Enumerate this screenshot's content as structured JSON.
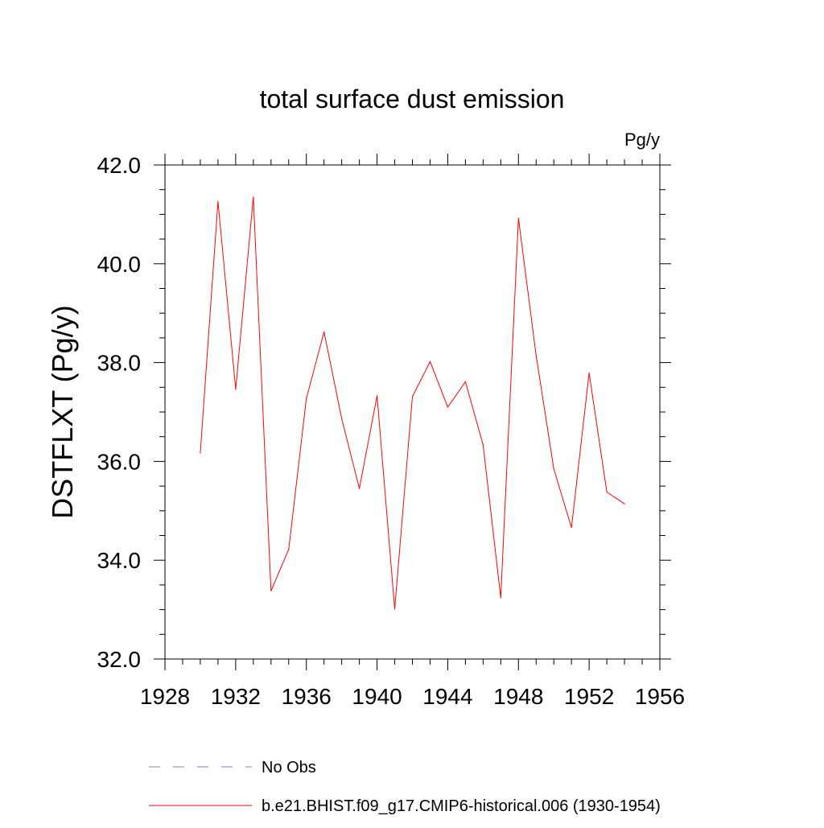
{
  "chart_data": {
    "type": "line",
    "title": "total surface dust emission",
    "units_label": "Pg/y",
    "ylabel": "DSTFLXT  (Pg/y)",
    "xlabel": "",
    "xlim": [
      1928,
      1956
    ],
    "ylim": [
      32.0,
      42.0
    ],
    "x_ticks": [
      "1928",
      "1932",
      "1936",
      "1940",
      "1944",
      "1948",
      "1952",
      "1956"
    ],
    "y_ticks": [
      "32.0",
      "34.0",
      "36.0",
      "38.0",
      "40.0",
      "42.0"
    ],
    "grid": false,
    "legend_position": "bottom",
    "series": [
      {
        "name": "b.e21.BHIST.f09_g17.CMIP6-historical.006 (1930-1954)",
        "color": "#ff0000",
        "style": "solid",
        "x": [
          1930,
          1931,
          1932,
          1933,
          1934,
          1935,
          1936,
          1937,
          1938,
          1939,
          1940,
          1941,
          1942,
          1943,
          1944,
          1945,
          1946,
          1947,
          1948,
          1949,
          1950,
          1951,
          1952,
          1953,
          1954
        ],
        "values": [
          36.17,
          41.26,
          37.46,
          41.35,
          33.38,
          34.22,
          37.27,
          38.62,
          36.87,
          35.45,
          37.33,
          33.01,
          37.31,
          38.02,
          37.1,
          37.61,
          36.33,
          33.24,
          40.92,
          38.14,
          35.85,
          34.66,
          37.79,
          35.38,
          35.14
        ]
      },
      {
        "name": "No Obs",
        "color": "#7f7fbf",
        "style": "dashed",
        "x": [],
        "values": []
      }
    ]
  }
}
